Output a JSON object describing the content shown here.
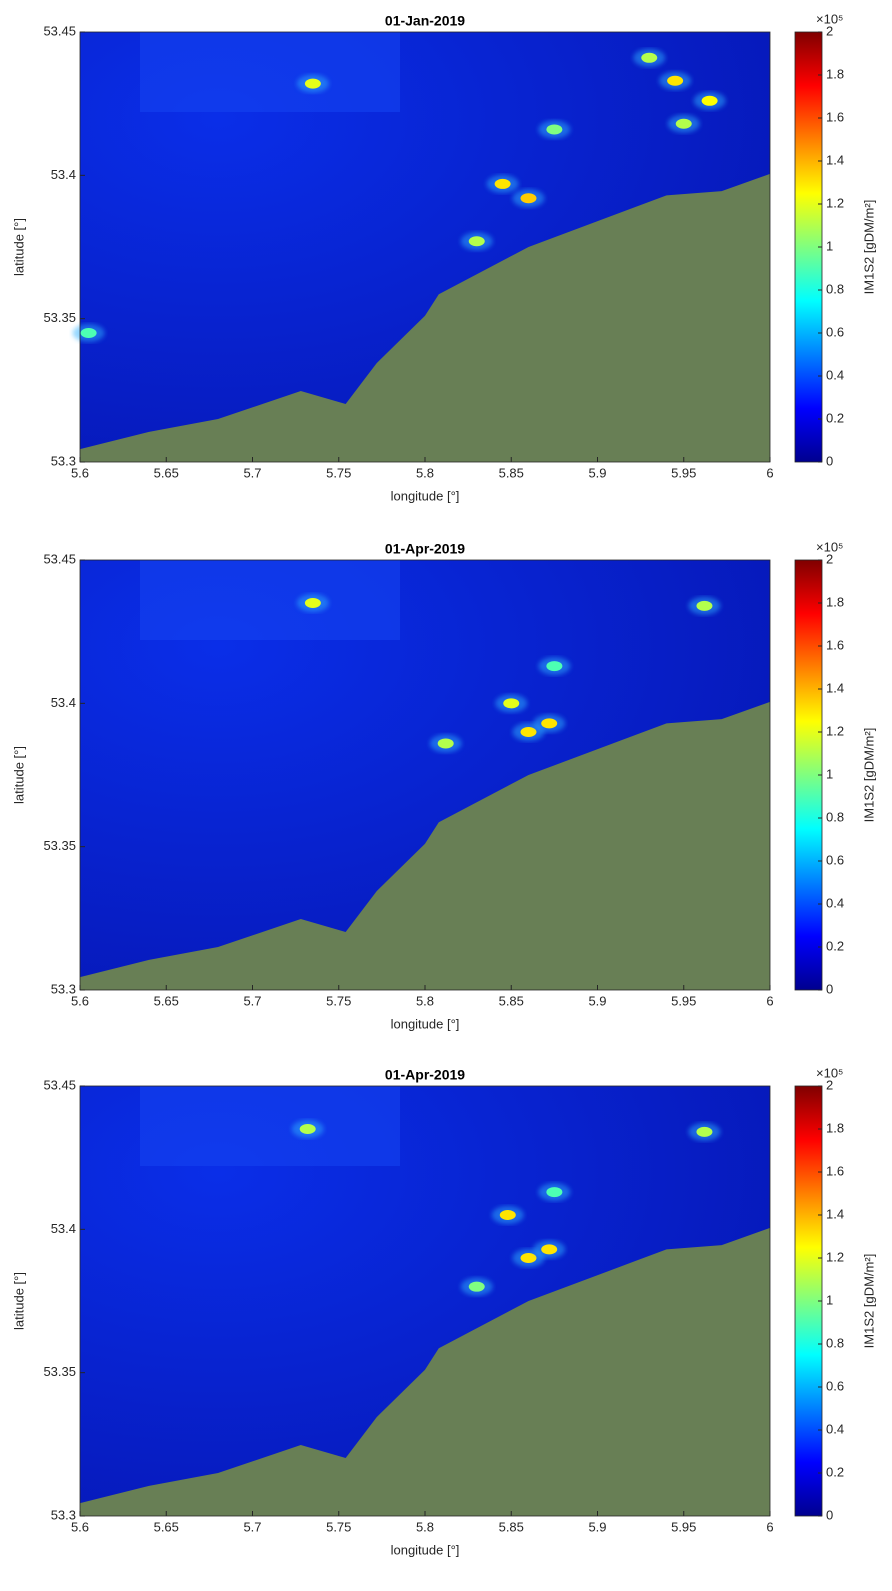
{
  "chart_data": [
    {
      "type": "heatmap",
      "title": "01-Jan-2019",
      "xlabel": "longitude [°]",
      "ylabel": "latitude [°]",
      "xlim": [
        5.6,
        6
      ],
      "ylim": [
        53.3,
        53.45
      ],
      "xticks": [
        5.6,
        5.65,
        5.7,
        5.75,
        5.8,
        5.85,
        5.9,
        5.95,
        6
      ],
      "yticks": [
        53.3,
        53.35,
        53.4,
        53.45
      ],
      "colorbar_label": "IM1S2 [gDM/m²]",
      "colorbar_exponent": "×10⁵",
      "clim": [
        0,
        2
      ],
      "cticks": [
        0,
        0.2,
        0.4,
        0.6,
        0.8,
        1,
        1.2,
        1.4,
        1.6,
        1.8,
        2
      ],
      "colormap": "jet",
      "points": [
        {
          "lon": 5.735,
          "lat": 53.432,
          "value": 1.2
        },
        {
          "lon": 5.845,
          "lat": 53.397,
          "value": 1.3
        },
        {
          "lon": 5.86,
          "lat": 53.392,
          "value": 1.35
        },
        {
          "lon": 5.83,
          "lat": 53.377,
          "value": 1.1
        },
        {
          "lon": 5.875,
          "lat": 53.416,
          "value": 1.0
        },
        {
          "lon": 5.945,
          "lat": 53.433,
          "value": 1.3
        },
        {
          "lon": 5.965,
          "lat": 53.426,
          "value": 1.25
        },
        {
          "lon": 5.93,
          "lat": 53.441,
          "value": 1.1
        },
        {
          "lon": 5.605,
          "lat": 53.345,
          "value": 0.9
        },
        {
          "lon": 5.95,
          "lat": 53.418,
          "value": 1.1
        }
      ]
    },
    {
      "type": "heatmap",
      "title": "01-Apr-2019",
      "xlabel": "longitude [°]",
      "ylabel": "latitude [°]",
      "xlim": [
        5.6,
        6
      ],
      "ylim": [
        53.3,
        53.45
      ],
      "xticks": [
        5.6,
        5.65,
        5.7,
        5.75,
        5.8,
        5.85,
        5.9,
        5.95,
        6
      ],
      "yticks": [
        53.3,
        53.35,
        53.4,
        53.45
      ],
      "colorbar_label": "IM1S2 [gDM/m²]",
      "colorbar_exponent": "×10⁵",
      "clim": [
        0,
        2
      ],
      "cticks": [
        0,
        0.2,
        0.4,
        0.6,
        0.8,
        1,
        1.2,
        1.4,
        1.6,
        1.8,
        2
      ],
      "colormap": "jet",
      "points": [
        {
          "lon": 5.735,
          "lat": 53.435,
          "value": 1.2
        },
        {
          "lon": 5.86,
          "lat": 53.39,
          "value": 1.3
        },
        {
          "lon": 5.872,
          "lat": 53.393,
          "value": 1.3
        },
        {
          "lon": 5.812,
          "lat": 53.386,
          "value": 1.1
        },
        {
          "lon": 5.962,
          "lat": 53.434,
          "value": 1.1
        },
        {
          "lon": 5.875,
          "lat": 53.413,
          "value": 0.9
        },
        {
          "lon": 5.85,
          "lat": 53.4,
          "value": 1.2
        }
      ]
    },
    {
      "type": "heatmap",
      "title": "01-Apr-2019",
      "xlabel": "longitude [°]",
      "ylabel": "latitude [°]",
      "xlim": [
        5.6,
        6
      ],
      "ylim": [
        53.3,
        53.45
      ],
      "xticks": [
        5.6,
        5.65,
        5.7,
        5.75,
        5.8,
        5.85,
        5.9,
        5.95,
        6
      ],
      "yticks": [
        53.3,
        53.35,
        53.4,
        53.45
      ],
      "colorbar_label": "IM1S2 [gDM/m²]",
      "colorbar_exponent": "×10⁵",
      "clim": [
        0,
        2
      ],
      "cticks": [
        0,
        0.2,
        0.4,
        0.6,
        0.8,
        1,
        1.2,
        1.4,
        1.6,
        1.8,
        2
      ],
      "colormap": "jet",
      "points": [
        {
          "lon": 5.732,
          "lat": 53.435,
          "value": 1.1
        },
        {
          "lon": 5.86,
          "lat": 53.39,
          "value": 1.3
        },
        {
          "lon": 5.872,
          "lat": 53.393,
          "value": 1.3
        },
        {
          "lon": 5.848,
          "lat": 53.405,
          "value": 1.3
        },
        {
          "lon": 5.962,
          "lat": 53.434,
          "value": 1.1
        },
        {
          "lon": 5.83,
          "lat": 53.38,
          "value": 1.0
        },
        {
          "lon": 5.875,
          "lat": 53.413,
          "value": 0.9
        }
      ]
    }
  ]
}
